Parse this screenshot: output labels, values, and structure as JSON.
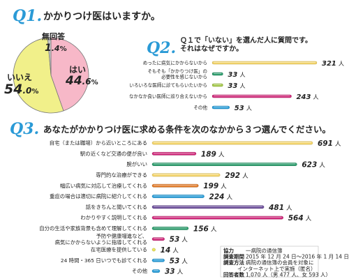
{
  "q1": {
    "number": "Q1.",
    "question": "かかりつけ医はいますか。",
    "chart_data": {
      "type": "pie",
      "categories": [
        "はい",
        "いいえ",
        "無回答"
      ],
      "values": [
        44.6,
        54.0,
        1.4
      ],
      "colors": [
        "#f7b8c8",
        "#f1f08a",
        "#c9c9c9"
      ],
      "labels": [
        {
          "name": "はい",
          "int": "44",
          "dec": ".6",
          "unit": "%"
        },
        {
          "name": "いいえ",
          "int": "54",
          "dec": ".0",
          "unit": "%"
        },
        {
          "name": "無回答",
          "int": "1",
          "dec": ".4",
          "unit": "%"
        }
      ]
    }
  },
  "q2": {
    "number": "Q2.",
    "question_line1": "Ｑ１で「いない」を選んだ人に質問です。",
    "question_line2": "それはなぜですか。",
    "chart_data": {
      "type": "bar",
      "orientation": "horizontal",
      "categories": [
        [
          "めったに病気にかからないから"
        ],
        [
          "そもそも「かかりつけ医」の",
          "必要性を感じないから"
        ],
        [
          "いろいろな医師に診てもらいたいから"
        ],
        [
          "なかなか良い医師に巡り合えないから"
        ],
        [
          "その他"
        ]
      ],
      "values": [
        321,
        33,
        33,
        243,
        53
      ],
      "colors": [
        "#f3d46a",
        "#2f9d6e",
        "#a5c94b",
        "#cf2a7b",
        "#2c9ed8"
      ],
      "unit": "人"
    }
  },
  "q3": {
    "number": "Q3.",
    "question": "あなたがかかりつけ医に求める条件を次のなかから３つ選んでください。",
    "chart_data": {
      "type": "bar",
      "orientation": "horizontal",
      "categories": [
        [
          "自宅（または職場）から近いところにある"
        ],
        [
          "駅の近くなど交通の便が良い"
        ],
        [
          "腕がいい"
        ],
        [
          "専門的な治療ができる"
        ],
        [
          "幅広い病気に対応して治療してくれる"
        ],
        [
          "重症の場合は適切に病院に紹介してくれる"
        ],
        [
          "話をきちんと聞いてくれる"
        ],
        [
          "わかりやすく説明してくれる"
        ],
        [
          "自分の生活や家族背景も含めて理解してくれる"
        ],
        [
          "予防や健康増進など、",
          "病気にかからないように指導してくれる"
        ],
        [
          "在宅医療を提供している"
        ],
        [
          "24 時間・365 日いつでも診てくれる"
        ],
        [
          "その他"
        ]
      ],
      "values": [
        691,
        189,
        623,
        292,
        199,
        224,
        481,
        564,
        156,
        53,
        14,
        53,
        33
      ],
      "colors": [
        "#f3d46a",
        "#cf2a7b",
        "#2f9d6e",
        "#f3d46a",
        "#e07b2a",
        "#2c9ed8",
        "#6b4d9a",
        "#cf2a7b",
        "#2f9d6e",
        "#cf2a7b",
        "#e9e25a",
        "#2c9ed8",
        "#2c9ed8"
      ],
      "unit": "人"
    }
  },
  "info": [
    {
      "label": "協力",
      "value": "一病院の通信簿"
    },
    {
      "label": "調査期間",
      "value": "2015 年 12 月 24 日〜2016 年 1 月 14 日"
    },
    {
      "label": "調査方法",
      "value": "病院の通信簿の会員を対象に"
    },
    {
      "label": "",
      "value": "インターネット上で実施（匿名）"
    },
    {
      "label": "回答者数",
      "value": "1,070 人（男 477 人、女 593 人）"
    }
  ]
}
